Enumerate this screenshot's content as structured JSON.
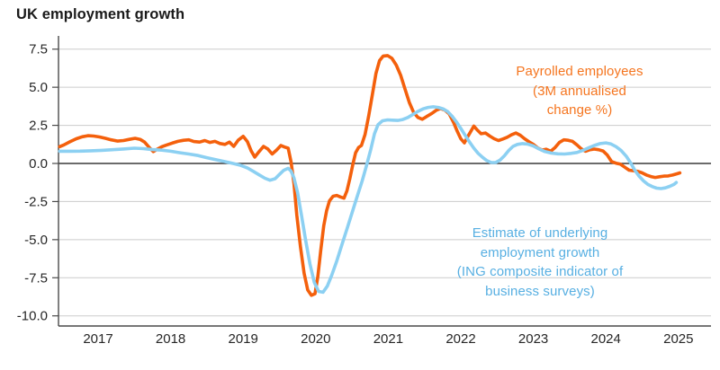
{
  "header": {
    "title": "UK employment growth"
  },
  "colors": {
    "payrolled_line": "#F4600C",
    "payrolled_text": "#F5751F",
    "indicator_line": "#8CD0F2",
    "indicator_text": "#57AFE2",
    "grid": "#cccccc",
    "zero_line": "#3a3a3a",
    "axis": "#4a4a4a",
    "tick_text": "#262626"
  },
  "chart_data": {
    "type": "line",
    "title": "UK employment growth",
    "xlabel": "",
    "ylabel": "",
    "xlim": [
      2016.45,
      2025.45
    ],
    "ylim": [
      -10.65,
      8.35
    ],
    "grid": "horizontal",
    "legend_position": "inline-annotations",
    "x_ticks": [
      2017,
      2018,
      2019,
      2020,
      2021,
      2022,
      2023,
      2024,
      2025
    ],
    "y_ticks": [
      7.5,
      5.0,
      2.5,
      0.0,
      -2.5,
      -5.0,
      -7.5,
      -10.0
    ],
    "y_tick_labels": [
      "7.5",
      "5.0",
      "2.5",
      "0.0",
      "-2.5",
      "-5.0",
      "-7.5",
      "-10.0"
    ],
    "series": [
      {
        "name": "Payrolled employees (3M annualised change %)",
        "color": "#F4600C",
        "points": [
          [
            2016.47,
            1.1
          ],
          [
            2016.53,
            1.22
          ],
          [
            2016.61,
            1.42
          ],
          [
            2016.7,
            1.62
          ],
          [
            2016.78,
            1.75
          ],
          [
            2016.86,
            1.82
          ],
          [
            2016.94,
            1.8
          ],
          [
            2017.02,
            1.74
          ],
          [
            2017.1,
            1.65
          ],
          [
            2017.18,
            1.55
          ],
          [
            2017.27,
            1.47
          ],
          [
            2017.35,
            1.5
          ],
          [
            2017.43,
            1.58
          ],
          [
            2017.51,
            1.65
          ],
          [
            2017.58,
            1.58
          ],
          [
            2017.64,
            1.4
          ],
          [
            2017.7,
            1.08
          ],
          [
            2017.76,
            0.78
          ],
          [
            2017.82,
            0.95
          ],
          [
            2017.88,
            1.1
          ],
          [
            2017.95,
            1.22
          ],
          [
            2018.02,
            1.33
          ],
          [
            2018.1,
            1.45
          ],
          [
            2018.18,
            1.52
          ],
          [
            2018.25,
            1.55
          ],
          [
            2018.32,
            1.44
          ],
          [
            2018.4,
            1.4
          ],
          [
            2018.47,
            1.5
          ],
          [
            2018.54,
            1.38
          ],
          [
            2018.61,
            1.45
          ],
          [
            2018.68,
            1.31
          ],
          [
            2018.75,
            1.25
          ],
          [
            2018.81,
            1.4
          ],
          [
            2018.87,
            1.12
          ],
          [
            2018.93,
            1.52
          ],
          [
            2019.0,
            1.78
          ],
          [
            2019.06,
            1.42
          ],
          [
            2019.11,
            0.82
          ],
          [
            2019.16,
            0.42
          ],
          [
            2019.22,
            0.78
          ],
          [
            2019.28,
            1.12
          ],
          [
            2019.34,
            0.95
          ],
          [
            2019.4,
            0.62
          ],
          [
            2019.46,
            0.88
          ],
          [
            2019.52,
            1.18
          ],
          [
            2019.57,
            1.08
          ],
          [
            2019.62,
            1.0
          ],
          [
            2019.66,
            0.1
          ],
          [
            2019.7,
            -1.3
          ],
          [
            2019.74,
            -3.4
          ],
          [
            2019.79,
            -5.5
          ],
          [
            2019.84,
            -7.2
          ],
          [
            2019.89,
            -8.3
          ],
          [
            2019.94,
            -8.65
          ],
          [
            2019.99,
            -8.55
          ],
          [
            2020.03,
            -7.4
          ],
          [
            2020.07,
            -5.7
          ],
          [
            2020.11,
            -4.1
          ],
          [
            2020.15,
            -3.1
          ],
          [
            2020.19,
            -2.45
          ],
          [
            2020.24,
            -2.15
          ],
          [
            2020.29,
            -2.1
          ],
          [
            2020.34,
            -2.2
          ],
          [
            2020.39,
            -2.28
          ],
          [
            2020.43,
            -1.8
          ],
          [
            2020.47,
            -1.0
          ],
          [
            2020.51,
            -0.1
          ],
          [
            2020.55,
            0.7
          ],
          [
            2020.59,
            1.05
          ],
          [
            2020.63,
            1.18
          ],
          [
            2020.68,
            1.9
          ],
          [
            2020.73,
            3.1
          ],
          [
            2020.78,
            4.5
          ],
          [
            2020.83,
            5.9
          ],
          [
            2020.88,
            6.75
          ],
          [
            2020.93,
            7.05
          ],
          [
            2020.99,
            7.08
          ],
          [
            2021.05,
            6.9
          ],
          [
            2021.11,
            6.45
          ],
          [
            2021.17,
            5.8
          ],
          [
            2021.23,
            4.9
          ],
          [
            2021.29,
            4.0
          ],
          [
            2021.35,
            3.35
          ],
          [
            2021.41,
            3.02
          ],
          [
            2021.47,
            2.9
          ],
          [
            2021.53,
            3.08
          ],
          [
            2021.6,
            3.28
          ],
          [
            2021.66,
            3.48
          ],
          [
            2021.72,
            3.6
          ],
          [
            2021.78,
            3.5
          ],
          [
            2021.84,
            3.25
          ],
          [
            2021.9,
            2.7
          ],
          [
            2021.95,
            2.12
          ],
          [
            2022.0,
            1.62
          ],
          [
            2022.05,
            1.35
          ],
          [
            2022.09,
            1.72
          ],
          [
            2022.14,
            2.12
          ],
          [
            2022.18,
            2.45
          ],
          [
            2022.23,
            2.18
          ],
          [
            2022.28,
            1.95
          ],
          [
            2022.34,
            2.0
          ],
          [
            2022.4,
            1.8
          ],
          [
            2022.46,
            1.62
          ],
          [
            2022.52,
            1.5
          ],
          [
            2022.58,
            1.6
          ],
          [
            2022.64,
            1.72
          ],
          [
            2022.7,
            1.88
          ],
          [
            2022.76,
            2.0
          ],
          [
            2022.82,
            1.85
          ],
          [
            2022.88,
            1.62
          ],
          [
            2022.94,
            1.42
          ],
          [
            2023.0,
            1.25
          ],
          [
            2023.06,
            1.02
          ],
          [
            2023.12,
            0.88
          ],
          [
            2023.18,
            0.93
          ],
          [
            2023.24,
            0.8
          ],
          [
            2023.3,
            1.05
          ],
          [
            2023.36,
            1.38
          ],
          [
            2023.42,
            1.55
          ],
          [
            2023.48,
            1.52
          ],
          [
            2023.54,
            1.45
          ],
          [
            2023.6,
            1.22
          ],
          [
            2023.66,
            0.96
          ],
          [
            2023.72,
            0.8
          ],
          [
            2023.78,
            0.9
          ],
          [
            2023.84,
            0.94
          ],
          [
            2023.9,
            0.9
          ],
          [
            2023.96,
            0.82
          ],
          [
            2024.02,
            0.55
          ],
          [
            2024.08,
            0.12
          ],
          [
            2024.14,
            0.02
          ],
          [
            2024.2,
            -0.05
          ],
          [
            2024.26,
            -0.25
          ],
          [
            2024.32,
            -0.44
          ],
          [
            2024.38,
            -0.48
          ],
          [
            2024.44,
            -0.52
          ],
          [
            2024.5,
            -0.62
          ],
          [
            2024.56,
            -0.76
          ],
          [
            2024.62,
            -0.86
          ],
          [
            2024.68,
            -0.92
          ],
          [
            2024.74,
            -0.87
          ],
          [
            2024.8,
            -0.83
          ],
          [
            2024.86,
            -0.82
          ],
          [
            2024.92,
            -0.76
          ],
          [
            2024.98,
            -0.68
          ],
          [
            2025.02,
            -0.62
          ]
        ]
      },
      {
        "name": "Estimate of underlying employment growth (ING composite indicator of business surveys)",
        "color": "#8CD0F2",
        "points": [
          [
            2016.47,
            0.8
          ],
          [
            2016.6,
            0.8
          ],
          [
            2016.75,
            0.81
          ],
          [
            2016.9,
            0.83
          ],
          [
            2017.05,
            0.86
          ],
          [
            2017.2,
            0.9
          ],
          [
            2017.35,
            0.95
          ],
          [
            2017.5,
            1.0
          ],
          [
            2017.62,
            0.97
          ],
          [
            2017.75,
            0.91
          ],
          [
            2017.88,
            0.87
          ],
          [
            2018.0,
            0.8
          ],
          [
            2018.12,
            0.71
          ],
          [
            2018.25,
            0.62
          ],
          [
            2018.38,
            0.52
          ],
          [
            2018.5,
            0.38
          ],
          [
            2018.62,
            0.25
          ],
          [
            2018.75,
            0.12
          ],
          [
            2018.86,
            0.0
          ],
          [
            2018.96,
            -0.12
          ],
          [
            2019.06,
            -0.3
          ],
          [
            2019.14,
            -0.52
          ],
          [
            2019.22,
            -0.75
          ],
          [
            2019.3,
            -0.97
          ],
          [
            2019.37,
            -1.1
          ],
          [
            2019.44,
            -1.0
          ],
          [
            2019.5,
            -0.72
          ],
          [
            2019.56,
            -0.45
          ],
          [
            2019.62,
            -0.32
          ],
          [
            2019.66,
            -0.5
          ],
          [
            2019.7,
            -0.95
          ],
          [
            2019.75,
            -1.9
          ],
          [
            2019.8,
            -3.3
          ],
          [
            2019.86,
            -5.0
          ],
          [
            2019.92,
            -6.6
          ],
          [
            2019.98,
            -7.8
          ],
          [
            2020.04,
            -8.4
          ],
          [
            2020.1,
            -8.45
          ],
          [
            2020.16,
            -8.05
          ],
          [
            2020.22,
            -7.35
          ],
          [
            2020.29,
            -6.4
          ],
          [
            2020.36,
            -5.35
          ],
          [
            2020.43,
            -4.3
          ],
          [
            2020.5,
            -3.25
          ],
          [
            2020.57,
            -2.2
          ],
          [
            2020.64,
            -1.15
          ],
          [
            2020.7,
            -0.15
          ],
          [
            2020.76,
            0.95
          ],
          [
            2020.81,
            1.95
          ],
          [
            2020.86,
            2.55
          ],
          [
            2020.92,
            2.8
          ],
          [
            2020.99,
            2.86
          ],
          [
            2021.06,
            2.84
          ],
          [
            2021.13,
            2.82
          ],
          [
            2021.2,
            2.88
          ],
          [
            2021.27,
            3.02
          ],
          [
            2021.34,
            3.22
          ],
          [
            2021.41,
            3.42
          ],
          [
            2021.48,
            3.58
          ],
          [
            2021.55,
            3.68
          ],
          [
            2021.62,
            3.72
          ],
          [
            2021.69,
            3.68
          ],
          [
            2021.76,
            3.57
          ],
          [
            2021.82,
            3.4
          ],
          [
            2021.88,
            3.1
          ],
          [
            2021.94,
            2.72
          ],
          [
            2022.0,
            2.3
          ],
          [
            2022.06,
            1.85
          ],
          [
            2022.12,
            1.4
          ],
          [
            2022.18,
            1.0
          ],
          [
            2022.24,
            0.66
          ],
          [
            2022.3,
            0.4
          ],
          [
            2022.36,
            0.18
          ],
          [
            2022.42,
            0.06
          ],
          [
            2022.48,
            0.06
          ],
          [
            2022.54,
            0.22
          ],
          [
            2022.6,
            0.5
          ],
          [
            2022.66,
            0.85
          ],
          [
            2022.72,
            1.12
          ],
          [
            2022.78,
            1.25
          ],
          [
            2022.85,
            1.3
          ],
          [
            2022.92,
            1.27
          ],
          [
            2023.0,
            1.15
          ],
          [
            2023.08,
            0.95
          ],
          [
            2023.16,
            0.78
          ],
          [
            2023.25,
            0.68
          ],
          [
            2023.34,
            0.63
          ],
          [
            2023.43,
            0.62
          ],
          [
            2023.52,
            0.66
          ],
          [
            2023.6,
            0.72
          ],
          [
            2023.68,
            0.85
          ],
          [
            2023.76,
            1.02
          ],
          [
            2023.84,
            1.18
          ],
          [
            2023.92,
            1.3
          ],
          [
            2024.0,
            1.35
          ],
          [
            2024.07,
            1.28
          ],
          [
            2024.14,
            1.1
          ],
          [
            2024.21,
            0.85
          ],
          [
            2024.28,
            0.48
          ],
          [
            2024.34,
            0.05
          ],
          [
            2024.4,
            -0.45
          ],
          [
            2024.46,
            -0.85
          ],
          [
            2024.52,
            -1.15
          ],
          [
            2024.58,
            -1.38
          ],
          [
            2024.64,
            -1.52
          ],
          [
            2024.7,
            -1.62
          ],
          [
            2024.76,
            -1.65
          ],
          [
            2024.82,
            -1.6
          ],
          [
            2024.88,
            -1.5
          ],
          [
            2024.94,
            -1.37
          ],
          [
            2024.97,
            -1.25
          ]
        ]
      }
    ],
    "annotations": [
      {
        "text": "Payrolled employees\n(3M annualised change %)",
        "color": "#F5751F"
      },
      {
        "text": "Estimate of underlying employment growth\n(ING composite indicator of business surveys)",
        "color": "#57AFE2"
      }
    ]
  }
}
